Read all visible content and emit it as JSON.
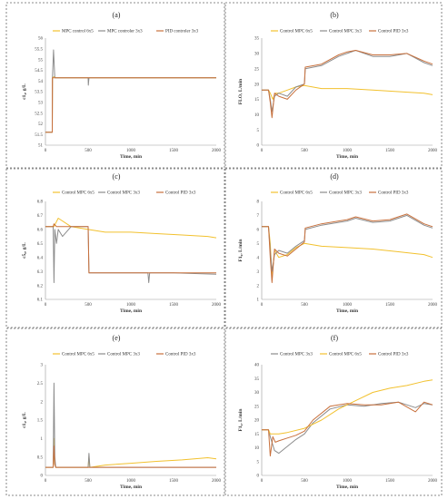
{
  "colors": {
    "mpc6": "#F2C12E",
    "mpc3": "#8C8C8C",
    "pid": "#C8703C"
  },
  "chart_data": [
    {
      "panel": "(a)",
      "type": "line",
      "xlabel": "Time, min",
      "ylabel": "c1₄, g/L",
      "xlim": [
        0,
        2000
      ],
      "ylim": [
        51,
        56
      ],
      "xticks": [
        "0",
        "500",
        "1000",
        "1500",
        "2000"
      ],
      "yticks": [
        "51",
        "51.5",
        "52",
        "52.5",
        "53",
        "53.5",
        "54",
        "54.5",
        "55",
        "55.5",
        "56"
      ],
      "series": [
        {
          "name": "MPC control 6x5",
          "color_key": "mpc6",
          "x": [
            0,
            80,
            82,
            100,
            120,
            500,
            502,
            510,
            1000,
            1500,
            2000
          ],
          "y": [
            51.6,
            51.6,
            54.15,
            54.2,
            54.15,
            54.15,
            54.15,
            54.15,
            54.15,
            54.15,
            54.15
          ]
        },
        {
          "name": "MPC controler 3x3",
          "color_key": "mpc3",
          "x": [
            0,
            80,
            82,
            95,
            110,
            500,
            502,
            510,
            1000,
            1500,
            2000
          ],
          "y": [
            51.6,
            51.6,
            54.1,
            55.45,
            54.15,
            54.15,
            53.8,
            54.15,
            54.15,
            54.15,
            54.15
          ]
        },
        {
          "name": "PID controler 3x3",
          "color_key": "pid",
          "x": [
            0,
            80,
            82,
            100,
            500,
            1000,
            1500,
            2000
          ],
          "y": [
            51.6,
            51.6,
            54.15,
            54.15,
            54.15,
            54.15,
            54.15,
            54.15
          ]
        }
      ]
    },
    {
      "panel": "(b)",
      "type": "line",
      "xlabel": "Time, min",
      "ylabel": "FLO, L/min",
      "xlim": [
        0,
        2000
      ],
      "ylim": [
        0,
        35
      ],
      "xticks": [
        "0",
        "500",
        "1000",
        "1500",
        "2000"
      ],
      "yticks": [
        "0",
        "5",
        "10",
        "15",
        "20",
        "25",
        "30",
        "35"
      ],
      "series": [
        {
          "name": "Control MPC 6x5",
          "color_key": "mpc6",
          "x": [
            0,
            80,
            100,
            130,
            160,
            200,
            300,
            400,
            500,
            700,
            1000,
            1300,
            1600,
            1900,
            2000
          ],
          "y": [
            18,
            18,
            17,
            15,
            17,
            17,
            18,
            19,
            19.5,
            18.5,
            18.5,
            18,
            17.5,
            17,
            16.5
          ]
        },
        {
          "name": "Control MPC 3x3",
          "color_key": "mpc3",
          "x": [
            0,
            80,
            100,
            120,
            150,
            200,
            300,
            400,
            500,
            510,
            700,
            900,
            1000,
            1100,
            1300,
            1500,
            1700,
            1900,
            2000
          ],
          "y": [
            18,
            18,
            15,
            11,
            16,
            17,
            16,
            19,
            20,
            25,
            26,
            29,
            30,
            31,
            29,
            29,
            30,
            27,
            26
          ]
        },
        {
          "name": "Control PID 3x3",
          "color_key": "pid",
          "x": [
            0,
            80,
            100,
            120,
            150,
            200,
            300,
            400,
            500,
            510,
            700,
            900,
            1000,
            1100,
            1300,
            1500,
            1700,
            1900,
            2000
          ],
          "y": [
            18,
            18,
            14,
            9,
            17,
            16,
            15,
            18,
            20,
            25.5,
            26.5,
            29.5,
            30.5,
            31,
            29.5,
            29.5,
            30,
            27.5,
            26.5
          ]
        }
      ]
    },
    {
      "panel": "(c)",
      "type": "line",
      "xlabel": "Time, min",
      "ylabel": "c5₀, g/L",
      "xlim": [
        0,
        2000
      ],
      "ylim": [
        6.1,
        6.8
      ],
      "xticks": [
        "0",
        "500",
        "1000",
        "1500",
        "2000"
      ],
      "yticks": [
        "6.1",
        "6.2",
        "6.3",
        "6.4",
        "6.5",
        "6.6",
        "6.7",
        "6.8"
      ],
      "series": [
        {
          "name": "Control MPC 6x5",
          "color_key": "mpc6",
          "x": [
            0,
            100,
            150,
            300,
            500,
            700,
            1000,
            1300,
            1600,
            1900,
            2000
          ],
          "y": [
            6.62,
            6.62,
            6.68,
            6.62,
            6.6,
            6.58,
            6.58,
            6.57,
            6.56,
            6.55,
            6.54
          ]
        },
        {
          "name": "Control MPC 3x3",
          "color_key": "mpc3",
          "x": [
            0,
            90,
            100,
            110,
            130,
            150,
            200,
            300,
            400,
            500,
            510,
            700,
            1000,
            1200,
            1210,
            1220,
            1500,
            2000
          ],
          "y": [
            6.62,
            6.62,
            6.22,
            6.6,
            6.5,
            6.6,
            6.55,
            6.62,
            6.62,
            6.62,
            6.29,
            6.29,
            6.29,
            6.29,
            6.22,
            6.29,
            6.29,
            6.28
          ]
        },
        {
          "name": "Control PID 3x3",
          "color_key": "pid",
          "x": [
            0,
            90,
            100,
            130,
            500,
            510,
            700,
            1000,
            1500,
            2000
          ],
          "y": [
            6.62,
            6.62,
            6.64,
            6.62,
            6.62,
            6.29,
            6.29,
            6.29,
            6.29,
            6.29
          ]
        }
      ]
    },
    {
      "panel": "(d)",
      "type": "line",
      "xlabel": "Time, min",
      "ylabel": "F1₀, L/min",
      "xlim": [
        0,
        2000
      ],
      "ylim": [
        1,
        8
      ],
      "xticks": [
        "0",
        "500",
        "1000",
        "1500",
        "2000"
      ],
      "yticks": [
        "1",
        "2",
        "3",
        "4",
        "5",
        "6",
        "7",
        "8"
      ],
      "series": [
        {
          "name": "Control MPC 6x5",
          "color_key": "mpc6",
          "x": [
            0,
            80,
            100,
            120,
            150,
            200,
            300,
            400,
            500,
            700,
            1000,
            1300,
            1600,
            1900,
            2000
          ],
          "y": [
            6.2,
            6.2,
            5,
            2.6,
            4.5,
            4,
            4.2,
            4.7,
            5,
            4.8,
            4.7,
            4.6,
            4.4,
            4.2,
            4
          ]
        },
        {
          "name": "Control MPC 3x3",
          "color_key": "mpc3",
          "x": [
            0,
            80,
            100,
            120,
            150,
            200,
            300,
            400,
            500,
            510,
            700,
            900,
            1000,
            1100,
            1300,
            1500,
            1700,
            1900,
            2000
          ],
          "y": [
            6.2,
            6.2,
            4.5,
            3,
            4.2,
            4.5,
            4.3,
            4.8,
            5.2,
            6,
            6.3,
            6.5,
            6.6,
            6.8,
            6.5,
            6.6,
            7,
            6.3,
            6.1
          ]
        },
        {
          "name": "Control PID 3x3",
          "color_key": "pid",
          "x": [
            0,
            80,
            100,
            120,
            150,
            200,
            300,
            400,
            500,
            510,
            700,
            900,
            1000,
            1100,
            1300,
            1500,
            1700,
            1900,
            2000
          ],
          "y": [
            6.2,
            6.2,
            4,
            2.2,
            4.6,
            4.3,
            4.1,
            4.6,
            5.1,
            6.1,
            6.4,
            6.6,
            6.7,
            6.9,
            6.6,
            6.7,
            7.1,
            6.4,
            6.2
          ]
        }
      ]
    },
    {
      "panel": "(e)",
      "type": "line",
      "xlabel": "Time, min",
      "ylabel": "c1₄, g/L",
      "xlim": [
        0,
        2000
      ],
      "ylim": [
        0,
        3
      ],
      "xticks": [
        "0",
        "500",
        "1000",
        "1500",
        "2000"
      ],
      "yticks": [
        "0",
        "0.5",
        "1",
        "1.5",
        "2",
        "2.5",
        "3"
      ],
      "series": [
        {
          "name": "Control MPC 6x5",
          "color_key": "mpc6",
          "x": [
            0,
            90,
            100,
            110,
            120,
            500,
            510,
            520,
            700,
            1000,
            1300,
            1600,
            1900,
            2000
          ],
          "y": [
            0.22,
            0.22,
            1.0,
            0.3,
            0.22,
            0.22,
            0.5,
            0.22,
            0.28,
            0.33,
            0.38,
            0.42,
            0.48,
            0.45
          ]
        },
        {
          "name": "Control MPC 3x3",
          "color_key": "mpc3",
          "x": [
            0,
            90,
            100,
            110,
            120,
            500,
            510,
            520,
            1000,
            1500,
            2000
          ],
          "y": [
            0.22,
            0.22,
            2.5,
            0.5,
            0.22,
            0.22,
            0.6,
            0.22,
            0.22,
            0.22,
            0.22
          ]
        },
        {
          "name": "Control PID 3x3",
          "color_key": "pid",
          "x": [
            0,
            90,
            100,
            110,
            120,
            500,
            1000,
            1500,
            2000
          ],
          "y": [
            0.22,
            0.22,
            0.8,
            0.3,
            0.22,
            0.22,
            0.22,
            0.22,
            0.22
          ]
        }
      ]
    },
    {
      "panel": "(f)",
      "type": "line",
      "xlabel": "Time, min",
      "ylabel": "F1₄, L/min",
      "xlim": [
        0,
        2000
      ],
      "ylim": [
        0,
        40
      ],
      "xticks": [
        "0",
        "500",
        "1000",
        "1500",
        "2000"
      ],
      "yticks": [
        "0",
        "5",
        "10",
        "15",
        "20",
        "25",
        "30",
        "35",
        "40"
      ],
      "series": [
        {
          "name": "Control MPC 3x3",
          "color_key": "mpc3",
          "x": [
            0,
            80,
            100,
            150,
            200,
            300,
            400,
            500,
            600,
            800,
            1000,
            1200,
            1400,
            1600,
            1800,
            1900,
            2000
          ],
          "y": [
            16.5,
            16.5,
            14,
            9,
            8,
            10.5,
            13,
            15,
            19,
            24,
            25.5,
            25,
            26,
            26.5,
            24.5,
            26,
            25.5
          ]
        },
        {
          "name": "Control MPC 6x5",
          "color_key": "mpc6",
          "x": [
            0,
            80,
            100,
            200,
            300,
            500,
            700,
            900,
            1100,
            1300,
            1500,
            1700,
            1900,
            2000
          ],
          "y": [
            16.5,
            16.5,
            15,
            15,
            15.5,
            17,
            20,
            24,
            27,
            30,
            31.5,
            32.5,
            34,
            34.5
          ]
        },
        {
          "name": "Control PID 3x3",
          "color_key": "pid",
          "x": [
            0,
            80,
            100,
            130,
            160,
            200,
            300,
            400,
            500,
            600,
            800,
            1000,
            1200,
            1400,
            1600,
            1800,
            1900,
            2000
          ],
          "y": [
            16.5,
            16.5,
            7,
            14,
            12,
            12.5,
            13.5,
            14.5,
            16,
            20,
            25,
            26,
            25.5,
            25.5,
            26.5,
            23,
            26.5,
            25.5
          ]
        }
      ]
    }
  ]
}
